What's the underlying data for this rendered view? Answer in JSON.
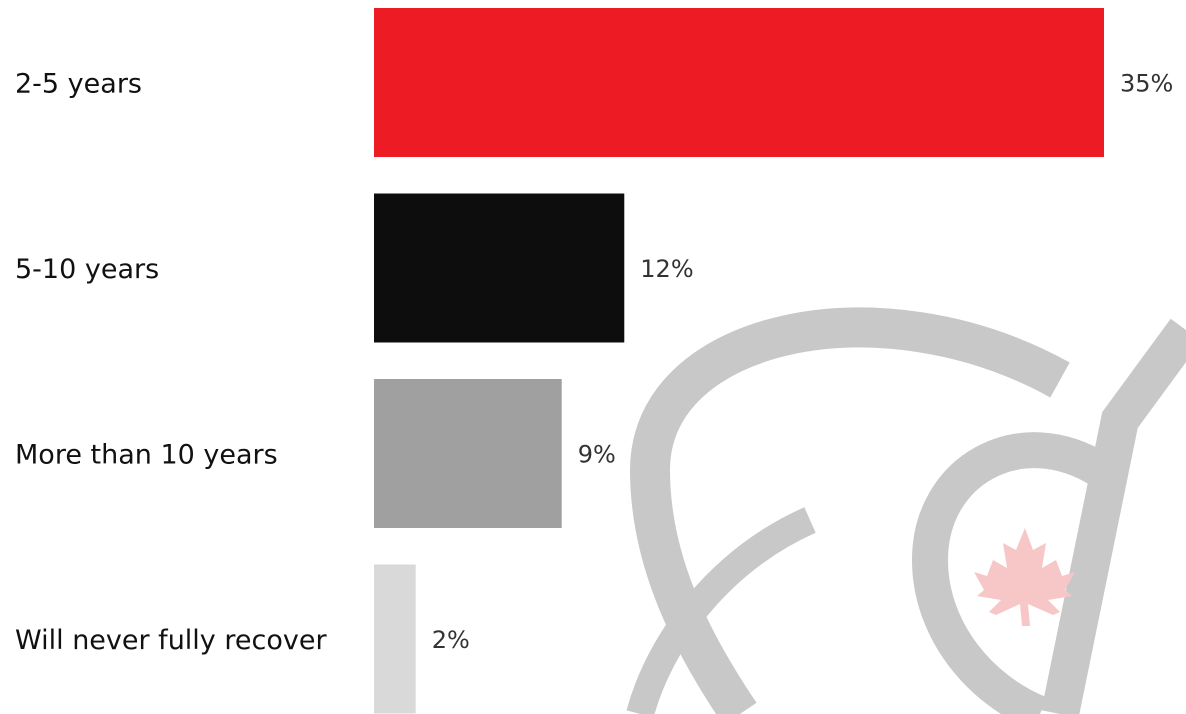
{
  "chart_data": {
    "type": "bar",
    "orientation": "horizontal",
    "categories": [
      "2-5 years",
      "5-10 years",
      "More than 10 years",
      "Will never fully recover"
    ],
    "values": [
      35,
      12,
      9,
      2
    ],
    "value_labels": [
      "35%",
      "12%",
      "9%",
      "2%"
    ],
    "unit": "%",
    "xlim": [
      0,
      35
    ],
    "grid": false,
    "legend": "none",
    "colors": [
      "#ED1C24",
      "#0D0D0D",
      "#A0A0A0",
      "#D9D9D9"
    ]
  },
  "watermark": {
    "arc_color": "#C8C8C8",
    "leaf_color": "#F7C6C6",
    "icon": "maple-leaf-icon"
  }
}
